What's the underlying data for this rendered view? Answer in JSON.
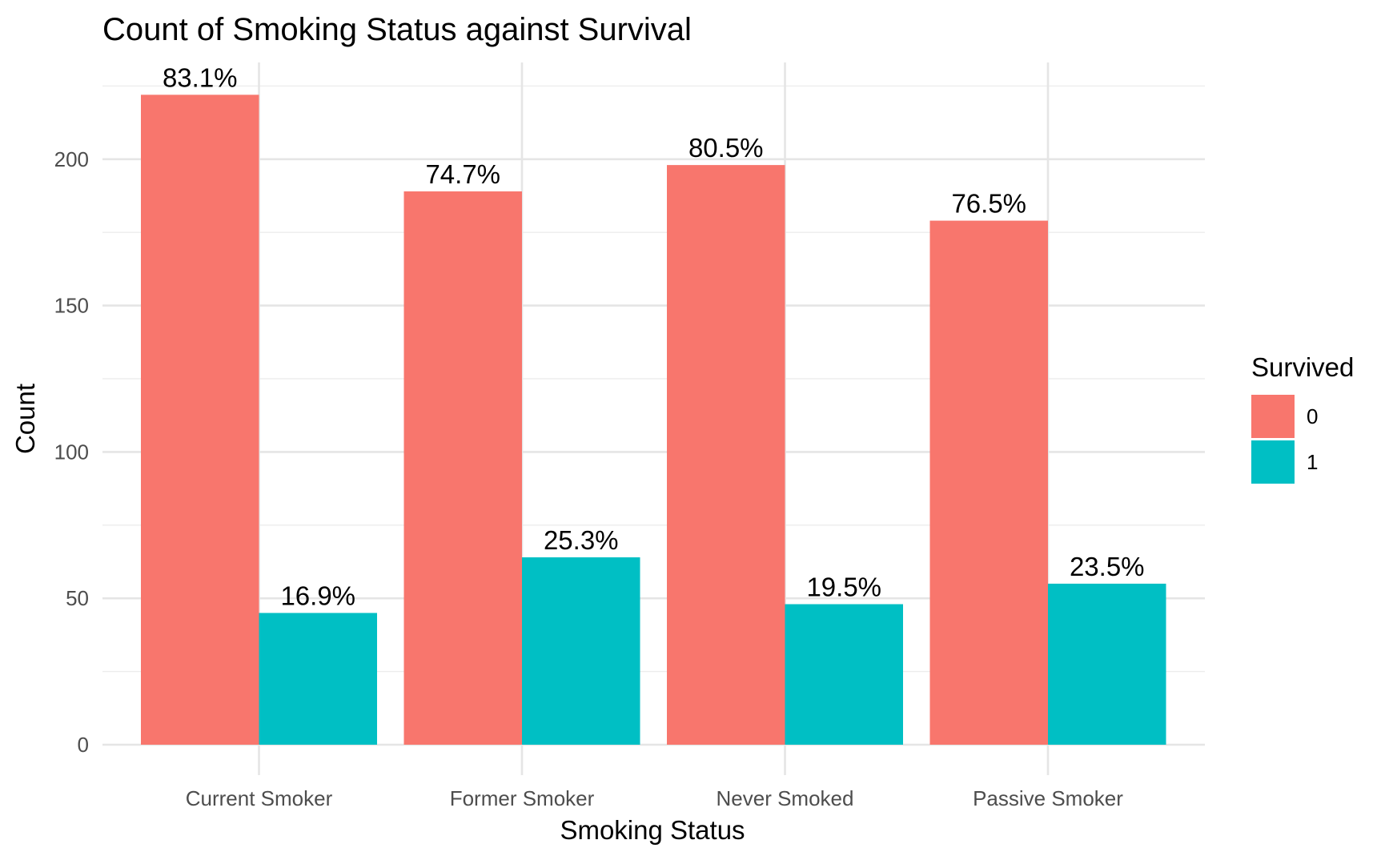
{
  "chart_data": {
    "type": "bar",
    "title": "Count of Smoking Status against Survival",
    "xlabel": "Smoking Status",
    "ylabel": "Count",
    "categories": [
      "Current Smoker",
      "Former Smoker",
      "Never Smoked",
      "Passive Smoker"
    ],
    "series": [
      {
        "name": "0",
        "color": "#F8766D",
        "values": [
          222,
          189,
          198,
          179
        ],
        "labels": [
          "83.1%",
          "74.7%",
          "80.5%",
          "76.5%"
        ]
      },
      {
        "name": "1",
        "color": "#00BFC4",
        "values": [
          45,
          64,
          48,
          55
        ],
        "labels": [
          "16.9%",
          "25.3%",
          "19.5%",
          "23.5%"
        ]
      }
    ],
    "ylim": [
      0,
      230
    ],
    "yticks": [
      0,
      50,
      100,
      150,
      200
    ],
    "ytick_labels": [
      "0",
      "50",
      "100",
      "150",
      "200"
    ],
    "grid": true,
    "legend": {
      "title": "Survived",
      "placement": "right",
      "entries": [
        "0",
        "1"
      ]
    }
  }
}
